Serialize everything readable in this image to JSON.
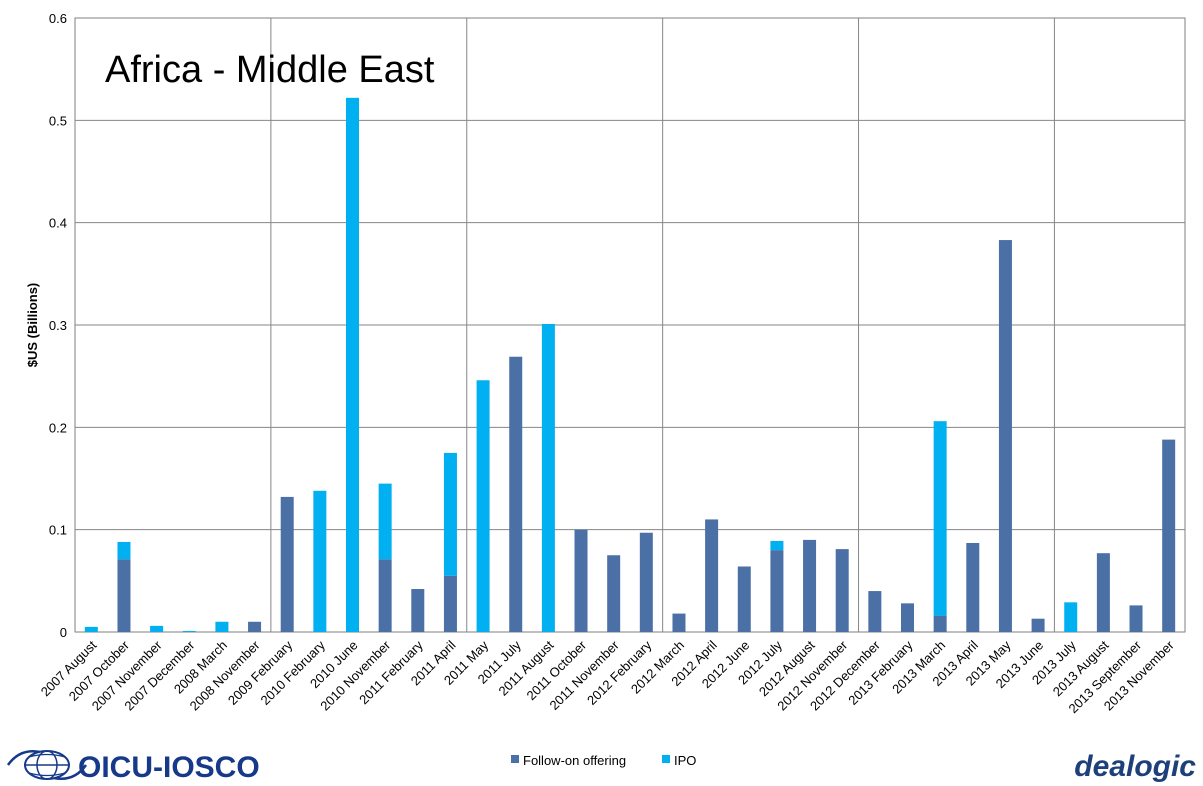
{
  "chart_data": {
    "type": "bar",
    "stacked": true,
    "title": "Africa - Middle East",
    "xlabel": "",
    "ylabel": "$US (Billions)",
    "ylim": [
      0,
      0.6
    ],
    "yticks": [
      "0",
      "0.1",
      "0.2",
      "0.3",
      "0.4",
      "0.5",
      "0.6"
    ],
    "grid": true,
    "legend_position": "bottom",
    "categories": [
      "2007 August",
      "2007 October",
      "2007 November",
      "2007 December",
      "2008 March",
      "2008 November",
      "2009 February",
      "2010 February",
      "2010 June",
      "2010 November",
      "2011 February",
      "2011 April",
      "2011 May",
      "2011 July",
      "2011 August",
      "2011 October",
      "2011 November",
      "2012 February",
      "2012 March",
      "2012 April",
      "2012 June",
      "2012 July",
      "2012 August",
      "2012 November",
      "2012 December",
      "2013 February",
      "2013 March",
      "2013 April",
      "2013 May",
      "2013 June",
      "2013 July",
      "2013 August",
      "2013 September",
      "2013 November"
    ],
    "year_divider_after_index": [
      5,
      11,
      17,
      23,
      29
    ],
    "series": [
      {
        "name": "Follow-on offering",
        "color": "#4a70a6",
        "values": [
          0,
          0.071,
          0,
          0,
          0,
          0.01,
          0.132,
          0,
          0,
          0.071,
          0.042,
          0.055,
          0,
          0.269,
          0,
          0.1,
          0.075,
          0.097,
          0.018,
          0.11,
          0.064,
          0.08,
          0.09,
          0.081,
          0.04,
          0.028,
          0.016,
          0.087,
          0.383,
          0.013,
          0,
          0.077,
          0.026,
          0.188
        ]
      },
      {
        "name": "IPO",
        "color": "#00b0f0",
        "values": [
          0.005,
          0.017,
          0.006,
          0.001,
          0.01,
          0,
          0,
          0.138,
          0.522,
          0.074,
          0,
          0.12,
          0.246,
          0,
          0.301,
          0,
          0,
          0,
          0,
          0,
          0,
          0.009,
          0,
          0,
          0,
          0,
          0.19,
          0,
          0,
          0,
          0.029,
          0,
          0,
          0
        ]
      }
    ]
  },
  "logos": {
    "left": {
      "text": "OICU-IOSCO",
      "icon": "globe-icon",
      "color": "#16398a"
    },
    "right": {
      "text": "dealogic",
      "color": "#1d3f7a"
    }
  }
}
